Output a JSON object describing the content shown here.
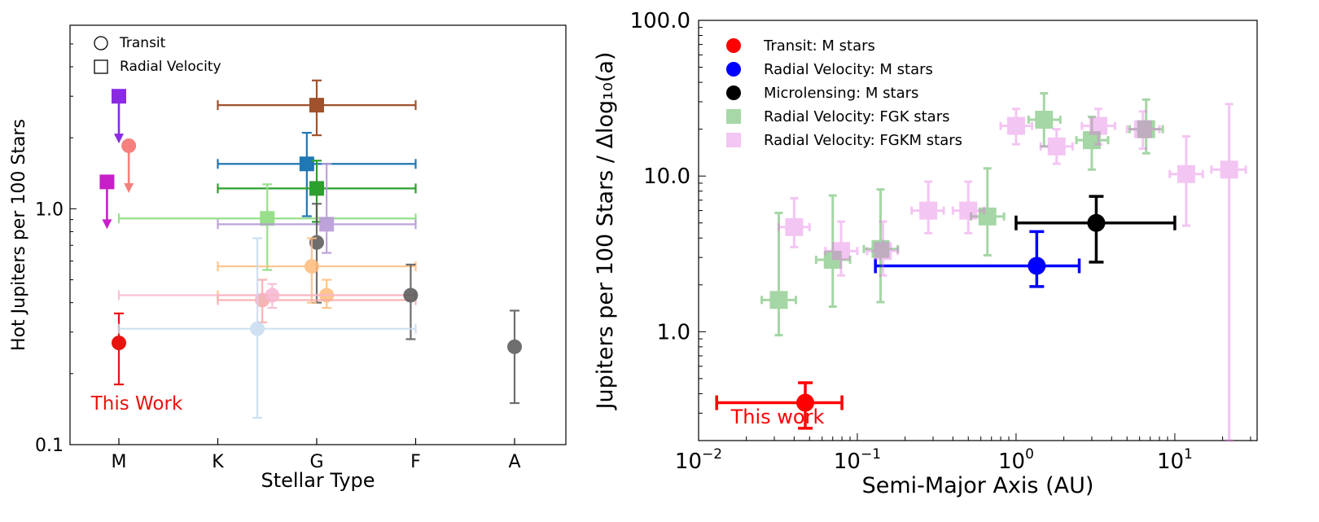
{
  "chart_data": [
    {
      "type": "scatter",
      "xlabel": "Stellar Type",
      "ylabel": "Hot Jupiters per 100 Stars",
      "yscale": "log",
      "ylim": [
        0.1,
        6.0
      ],
      "x_categories": [
        "M",
        "K",
        "G",
        "F",
        "A"
      ],
      "yticks": [
        {
          "value": 0.1,
          "label": "0.1"
        },
        {
          "value": 1.0,
          "label": "1.0"
        }
      ],
      "legend": {
        "position": "top-left",
        "entries": [
          {
            "label": "Transit",
            "marker": "circle"
          },
          {
            "label": "Radial Velocity",
            "marker": "square"
          }
        ]
      },
      "annotation": {
        "text": "This Work",
        "color": "#e8130f"
      },
      "points": [
        {
          "marker": "circle",
          "color": "#e8130f",
          "alpha": 1.0,
          "x": 0.0,
          "y": 0.27,
          "ylo": 0.18,
          "yhi": 0.36
        },
        {
          "marker": "square",
          "color": "#8a2be2",
          "alpha": 1.0,
          "x": 0.0,
          "y": 3.0,
          "upper_limit": true
        },
        {
          "marker": "square",
          "color": "#c71fc7",
          "alpha": 1.0,
          "x": -0.12,
          "y": 1.3,
          "upper_limit": true
        },
        {
          "marker": "circle",
          "color": "#f4736f",
          "alpha": 0.9,
          "x": 0.1,
          "y": 1.85,
          "upper_limit": true
        },
        {
          "marker": "square",
          "color": "#a0522d",
          "alpha": 1.0,
          "x": 2.0,
          "y": 2.75,
          "xlo": 1.0,
          "xhi": 3.0,
          "ylo": 2.05,
          "yhi": 3.5
        },
        {
          "marker": "square",
          "color": "#1f77b4",
          "alpha": 1.0,
          "x": 1.9,
          "y": 1.55,
          "xlo": 1.0,
          "xhi": 3.0,
          "ylo": 0.93,
          "yhi": 2.1
        },
        {
          "marker": "square",
          "color": "#2ca02c",
          "alpha": 1.0,
          "x": 2.0,
          "y": 1.22,
          "xlo": 1.0,
          "xhi": 3.0,
          "ylo": 0.88,
          "yhi": 1.6
        },
        {
          "marker": "square",
          "color": "#98df8a",
          "alpha": 1.0,
          "x": 1.5,
          "y": 0.91,
          "xlo": 0.0,
          "xhi": 3.0,
          "ylo": 0.55,
          "yhi": 1.27
        },
        {
          "marker": "square",
          "color": "#b79ad6",
          "alpha": 0.9,
          "x": 2.1,
          "y": 0.86,
          "xlo": 1.0,
          "xhi": 3.0,
          "ylo": 0.65,
          "yhi": 1.55
        },
        {
          "marker": "circle",
          "color": "#555555",
          "alpha": 0.85,
          "x": 2.0,
          "y": 0.72,
          "ylo": 0.4,
          "yhi": 1.05
        },
        {
          "marker": "circle",
          "color": "#ffbb78",
          "alpha": 0.85,
          "x": 1.95,
          "y": 0.57,
          "xlo": 1.0,
          "xhi": 3.0,
          "ylo": 0.4,
          "yhi": 0.75
        },
        {
          "marker": "circle",
          "color": "#ffbb78",
          "alpha": 0.85,
          "x": 2.1,
          "y": 0.43,
          "xlo": 1.0,
          "xhi": 3.0,
          "ylo": 0.38,
          "yhi": 0.5
        },
        {
          "marker": "circle",
          "color": "#f7a8a8",
          "alpha": 0.85,
          "x": 1.45,
          "y": 0.41,
          "xlo": 1.0,
          "xhi": 3.0,
          "ylo": 0.33,
          "yhi": 0.5
        },
        {
          "marker": "circle",
          "color": "#f7b6d2",
          "alpha": 0.85,
          "x": 1.55,
          "y": 0.43,
          "xlo": 0.0,
          "xhi": 3.0,
          "ylo": 0.38,
          "yhi": 0.48
        },
        {
          "marker": "circle",
          "color": "#555555",
          "alpha": 0.85,
          "x": 2.95,
          "y": 0.43,
          "ylo": 0.28,
          "yhi": 0.58
        },
        {
          "marker": "circle",
          "color": "#c6dbef",
          "alpha": 0.85,
          "x": 1.4,
          "y": 0.31,
          "xlo": 0.0,
          "xhi": 3.0,
          "ylo": 0.13,
          "yhi": 0.75
        },
        {
          "marker": "circle",
          "color": "#555555",
          "alpha": 0.85,
          "x": 4.0,
          "y": 0.26,
          "ylo": 0.15,
          "yhi": 0.37
        }
      ]
    },
    {
      "type": "scatter",
      "xlabel": "Semi-Major Axis (AU)",
      "ylabel": "Jupiters per 100 Stars / Δlog₁₀(a)",
      "xscale": "log",
      "yscale": "log",
      "xlim": [
        0.01,
        33
      ],
      "ylim": [
        0.2,
        100
      ],
      "xticks": [
        {
          "value": 0.01,
          "base": "10",
          "exp": "−2"
        },
        {
          "value": 0.1,
          "base": "10",
          "exp": "−1"
        },
        {
          "value": 1,
          "base": "10",
          "exp": "0"
        },
        {
          "value": 10,
          "base": "10",
          "exp": "1"
        }
      ],
      "yticks": [
        {
          "value": 1,
          "label": "1.0"
        },
        {
          "value": 10,
          "label": "10.0"
        },
        {
          "value": 100,
          "label": "100.0"
        }
      ],
      "legend": {
        "position": "top-left",
        "entries": [
          {
            "label": "Transit: M stars",
            "marker": "circle",
            "color": "#ff0000"
          },
          {
            "label": "Radial Velocity: M stars",
            "marker": "circle",
            "color": "#0000ff"
          },
          {
            "label": "Microlensing: M stars",
            "marker": "circle",
            "color": "#000000"
          },
          {
            "label": "Radial Velocity: FGK stars",
            "marker": "square",
            "color": "#2ca02c"
          },
          {
            "label": "Radial Velocity: FGKM stars",
            "marker": "square",
            "color": "#e377e3"
          }
        ]
      },
      "annotation": {
        "text": "This work",
        "color": "#ff0000"
      },
      "series": [
        {
          "name": "Transit: M stars",
          "marker": "circle",
          "color": "#ff0000",
          "points": [
            {
              "x": 0.047,
              "y": 0.35,
              "xlo": 0.013,
              "xhi": 0.08,
              "ylo": 0.24,
              "yhi": 0.47
            }
          ]
        },
        {
          "name": "Radial Velocity: M stars",
          "marker": "circle",
          "color": "#0000ff",
          "points": [
            {
              "x": 1.35,
              "y": 2.65,
              "xlo": 0.13,
              "xhi": 2.5,
              "ylo": 1.95,
              "yhi": 4.4
            }
          ]
        },
        {
          "name": "Microlensing: M stars",
          "marker": "circle",
          "color": "#000000",
          "points": [
            {
              "x": 3.2,
              "y": 5.0,
              "xlo": 1.0,
              "xhi": 10.0,
              "ylo": 2.8,
              "yhi": 7.4
            }
          ]
        },
        {
          "name": "Radial Velocity: FGK stars",
          "marker": "square",
          "color": "#2ca02c",
          "points": [
            {
              "x": 0.032,
              "y": 1.6,
              "xlo": 0.025,
              "xhi": 0.041,
              "ylo": 0.95,
              "yhi": 5.8
            },
            {
              "x": 0.07,
              "y": 2.9,
              "xlo": 0.055,
              "xhi": 0.09,
              "ylo": 1.45,
              "yhi": 7.5
            },
            {
              "x": 0.14,
              "y": 3.4,
              "xlo": 0.11,
              "xhi": 0.18,
              "ylo": 1.55,
              "yhi": 8.2
            },
            {
              "x": 0.66,
              "y": 5.5,
              "xlo": 0.52,
              "xhi": 0.84,
              "ylo": 3.1,
              "yhi": 11.2
            },
            {
              "x": 1.5,
              "y": 23.0,
              "xlo": 1.2,
              "xhi": 1.9,
              "ylo": 15.5,
              "yhi": 34.0
            },
            {
              "x": 3.0,
              "y": 17.0,
              "xlo": 2.4,
              "xhi": 3.8,
              "ylo": 11.0,
              "yhi": 24.0
            },
            {
              "x": 6.6,
              "y": 20.0,
              "xlo": 5.2,
              "xhi": 8.4,
              "ylo": 14.0,
              "yhi": 31.0
            }
          ]
        },
        {
          "name": "Radial Velocity: FGKM stars",
          "marker": "square",
          "color": "#e377e3",
          "points": [
            {
              "x": 0.04,
              "y": 4.7,
              "xlo": 0.032,
              "xhi": 0.05,
              "ylo": 3.5,
              "yhi": 7.2
            },
            {
              "x": 0.079,
              "y": 3.3,
              "xlo": 0.063,
              "xhi": 0.1,
              "ylo": 2.3,
              "yhi": 5.1
            },
            {
              "x": 0.145,
              "y": 3.3,
              "xlo": 0.115,
              "xhi": 0.18,
              "ylo": 2.3,
              "yhi": 5.1
            },
            {
              "x": 0.28,
              "y": 6.0,
              "xlo": 0.22,
              "xhi": 0.35,
              "ylo": 4.3,
              "yhi": 9.2
            },
            {
              "x": 0.5,
              "y": 6.0,
              "xlo": 0.4,
              "xhi": 0.63,
              "ylo": 4.3,
              "yhi": 9.2
            },
            {
              "x": 1.0,
              "y": 21.0,
              "xlo": 0.8,
              "xhi": 1.26,
              "ylo": 16.0,
              "yhi": 27.0
            },
            {
              "x": 1.8,
              "y": 15.5,
              "xlo": 1.43,
              "xhi": 2.27,
              "ylo": 12.0,
              "yhi": 20.0
            },
            {
              "x": 3.3,
              "y": 21.0,
              "xlo": 2.6,
              "xhi": 4.2,
              "ylo": 16.0,
              "yhi": 27.0
            },
            {
              "x": 6.3,
              "y": 20.0,
              "xlo": 5.0,
              "xhi": 8.0,
              "ylo": 15.0,
              "yhi": 26.0
            },
            {
              "x": 11.8,
              "y": 10.3,
              "xlo": 9.3,
              "xhi": 15.0,
              "ylo": 4.8,
              "yhi": 18.0
            },
            {
              "x": 22.0,
              "y": 11.0,
              "xlo": 17.0,
              "xhi": 28.0,
              "ylo": 0.2,
              "yhi": 29.0
            }
          ]
        }
      ]
    }
  ]
}
